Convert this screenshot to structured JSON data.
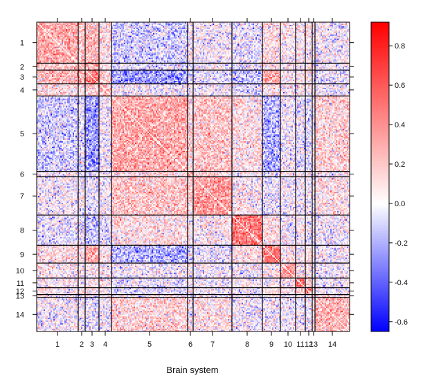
{
  "chart_data": {
    "type": "heatmap",
    "xlabel": "Brain system",
    "ylabel": "",
    "systems": [
      "1",
      "2",
      "3",
      "4",
      "5",
      "6",
      "7",
      "8",
      "9",
      "10",
      "11",
      "12",
      "13",
      "14"
    ],
    "x_tick_labels": [
      "1",
      "2",
      "3",
      "4",
      "5",
      "6",
      "7",
      "8",
      "9",
      "10",
      "11",
      "12",
      "13",
      "14"
    ],
    "y_tick_labels": [
      "1",
      "2",
      "3",
      "4",
      "5",
      "6",
      "7",
      "8",
      "9",
      "10",
      "11",
      "12",
      "13",
      "14"
    ],
    "colorbar": {
      "min": -0.65,
      "max": 0.92,
      "ticks": [
        0.8,
        0.6,
        0.4,
        0.2,
        0.0,
        -0.2,
        -0.4,
        -0.6
      ],
      "tick_labels": [
        "0.8",
        "0.6",
        "0.4",
        "0.2",
        "0.0",
        "-0.2",
        "-0.4",
        "-0.6"
      ],
      "colors": [
        "#0000ff",
        "#ffffff",
        "#ff0000"
      ]
    },
    "approx_system_sizes": [
      30,
      5,
      10,
      9,
      55,
      4,
      28,
      22,
      13,
      11,
      7,
      5,
      2,
      25
    ],
    "block_mean_correlation": [
      [
        0.3,
        0.2,
        0.25,
        0.1,
        -0.1,
        0.0,
        0.0,
        -0.05,
        0.1,
        0.05,
        0.05,
        0.05,
        0.0,
        0.0
      ],
      [
        0.2,
        0.35,
        0.25,
        0.1,
        -0.1,
        0.0,
        0.0,
        -0.05,
        0.1,
        0.05,
        0.05,
        0.05,
        0.0,
        0.0
      ],
      [
        0.25,
        0.25,
        0.45,
        0.15,
        -0.25,
        -0.05,
        -0.05,
        -0.15,
        0.3,
        0.05,
        0.1,
        0.1,
        0.0,
        -0.05
      ],
      [
        0.1,
        0.1,
        0.15,
        0.25,
        0.0,
        0.0,
        0.0,
        -0.05,
        0.05,
        0.0,
        0.05,
        0.05,
        0.0,
        0.0
      ],
      [
        -0.1,
        -0.1,
        -0.25,
        0.0,
        0.3,
        0.1,
        0.2,
        0.1,
        -0.2,
        0.0,
        -0.05,
        -0.05,
        0.05,
        0.15
      ],
      [
        0.0,
        0.0,
        -0.05,
        0.0,
        0.1,
        0.25,
        0.1,
        0.0,
        0.0,
        0.0,
        0.0,
        0.0,
        0.0,
        0.05
      ],
      [
        0.0,
        0.0,
        -0.05,
        0.0,
        0.2,
        0.1,
        0.35,
        0.05,
        -0.05,
        0.0,
        0.0,
        0.0,
        0.0,
        0.1
      ],
      [
        -0.05,
        -0.05,
        -0.15,
        -0.05,
        0.1,
        0.0,
        0.05,
        0.45,
        0.1,
        0.0,
        0.0,
        0.0,
        0.0,
        0.0
      ],
      [
        0.1,
        0.1,
        0.3,
        0.05,
        -0.2,
        0.0,
        -0.05,
        0.1,
        0.45,
        0.05,
        0.05,
        0.05,
        0.0,
        0.0
      ],
      [
        0.05,
        0.05,
        0.05,
        0.0,
        0.0,
        0.0,
        0.0,
        0.0,
        0.05,
        0.35,
        0.1,
        0.1,
        0.0,
        0.0
      ],
      [
        0.05,
        0.05,
        0.1,
        0.05,
        -0.05,
        0.0,
        0.0,
        0.0,
        0.05,
        0.1,
        0.5,
        0.15,
        0.0,
        0.0
      ],
      [
        0.05,
        0.05,
        0.1,
        0.05,
        -0.05,
        0.0,
        0.0,
        0.0,
        0.05,
        0.1,
        0.15,
        0.35,
        0.05,
        0.0
      ],
      [
        0.0,
        0.0,
        0.0,
        0.0,
        0.05,
        0.0,
        0.0,
        0.0,
        0.0,
        0.0,
        0.0,
        0.05,
        0.3,
        0.05
      ],
      [
        0.0,
        0.0,
        -0.05,
        0.0,
        0.15,
        0.05,
        0.1,
        0.0,
        0.0,
        0.0,
        0.0,
        0.0,
        0.05,
        0.25
      ]
    ]
  }
}
